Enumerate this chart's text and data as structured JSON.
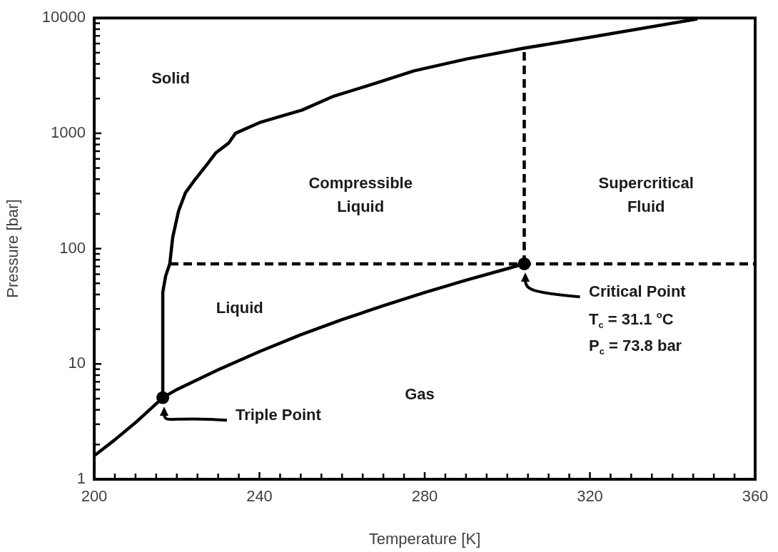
{
  "chart_data": {
    "type": "line",
    "xlabel": "Temperature [K]",
    "ylabel": "Pressure [bar]",
    "log": "y",
    "grid": false,
    "legend": false,
    "xlim": [
      200,
      360
    ],
    "xticks": [
      200,
      {
        "value": 205,
        "label": null
      },
      {
        "value": 210,
        "label": null
      },
      {
        "value": 215,
        "label": null
      },
      {
        "value": 220,
        "label": null
      },
      {
        "value": 225,
        "label": null
      },
      {
        "value": 230,
        "label": null
      },
      {
        "value": 235,
        "label": null
      },
      240,
      {
        "value": 245,
        "label": null
      },
      {
        "value": 250,
        "label": null
      },
      {
        "value": 255,
        "label": null
      },
      {
        "value": 260,
        "label": null
      },
      {
        "value": 265,
        "label": null
      },
      {
        "value": 270,
        "label": null
      },
      {
        "value": 275,
        "label": null
      },
      280,
      {
        "value": 285,
        "label": null
      },
      {
        "value": 290,
        "label": null
      },
      {
        "value": 295,
        "label": null
      },
      {
        "value": 300,
        "label": null
      },
      {
        "value": 305,
        "label": null
      },
      {
        "value": 310,
        "label": null
      },
      {
        "value": 315,
        "label": null
      },
      320,
      {
        "value": 325,
        "label": null
      },
      {
        "value": 330,
        "label": null
      },
      {
        "value": 335,
        "label": null
      },
      {
        "value": 340,
        "label": null
      },
      {
        "value": 345,
        "label": null
      },
      {
        "value": 350,
        "label": null
      },
      {
        "value": 355,
        "label": null
      },
      360
    ],
    "ylim": [
      1,
      10000
    ],
    "yticks": [
      1,
      {
        "value": 2,
        "label": null
      },
      {
        "value": 3,
        "label": null
      },
      {
        "value": 4,
        "label": null
      },
      {
        "value": 5,
        "label": null
      },
      {
        "value": 6,
        "label": null
      },
      {
        "value": 7,
        "label": null
      },
      {
        "value": 8,
        "label": null
      },
      {
        "value": 9,
        "label": null
      },
      10,
      {
        "value": 20,
        "label": null
      },
      {
        "value": 30,
        "label": null
      },
      {
        "value": 40,
        "label": null
      },
      {
        "value": 50,
        "label": null
      },
      {
        "value": 60,
        "label": null
      },
      {
        "value": 70,
        "label": null
      },
      {
        "value": 80,
        "label": null
      },
      {
        "value": 90,
        "label": null
      },
      100,
      {
        "value": 200,
        "label": null
      },
      {
        "value": 300,
        "label": null
      },
      {
        "value": 400,
        "label": null
      },
      {
        "value": 500,
        "label": null
      },
      {
        "value": 600,
        "label": null
      },
      {
        "value": 700,
        "label": null
      },
      {
        "value": 800,
        "label": null
      },
      {
        "value": 900,
        "label": null
      },
      1000,
      {
        "value": 2000,
        "label": null
      },
      {
        "value": 3000,
        "label": null
      },
      {
        "value": 4000,
        "label": null
      },
      {
        "value": 5000,
        "label": null
      },
      {
        "value": 6000,
        "label": null
      },
      {
        "value": 7000,
        "label": null
      },
      {
        "value": 8000,
        "label": null
      },
      {
        "value": 9000,
        "label": null
      },
      10000
    ],
    "series": [
      {
        "type": "line",
        "color": "#000000",
        "marker": "none",
        "line_style": "solid",
        "x": [
          200,
          205,
          210,
          216.6
        ],
        "values": [
          1.6,
          2.2,
          3.1,
          5.1
        ]
      },
      {
        "type": "line",
        "color": "#000000",
        "marker": "none",
        "line_style": "solid",
        "x": [
          216.6,
          220,
          230,
          240,
          250,
          260,
          270,
          280,
          290,
          300,
          304.1
        ],
        "values": [
          5.1,
          6,
          8.9,
          12.8,
          17.9,
          24.2,
          32,
          41.6,
          53.2,
          67,
          73.8
        ]
      },
      {
        "type": "line",
        "color": "#000000",
        "marker": "none",
        "line_style": "solid",
        "x": [
          216.6,
          216.6,
          217.3,
          218.3,
          219,
          220.4,
          222.1,
          224.2,
          227.3,
          229.5,
          232.5,
          234.2,
          240,
          246.3,
          250.3,
          258,
          267.6,
          277.4,
          290,
          303.8,
          320,
          346
        ],
        "values": [
          5.1,
          42,
          58,
          74,
          125,
          211,
          306,
          388,
          537,
          680,
          819,
          1000,
          1237,
          1445,
          1589,
          2100,
          2680,
          3480,
          4400,
          5450,
          6800,
          9800
        ]
      },
      {
        "type": "line",
        "color": "#000000",
        "marker": "none",
        "line_style": "dashed",
        "x": [
          218.3,
          360
        ],
        "values": [
          73.8,
          73.8
        ]
      },
      {
        "type": "line",
        "color": "#000000",
        "marker": "none",
        "line_style": "dashed",
        "x": [
          304.1,
          304.1
        ],
        "values": [
          73.8,
          5450
        ]
      },
      {
        "type": "scatter",
        "color": "#000000",
        "marker": "circle",
        "x": [
          216.6,
          304.1
        ],
        "values": [
          5.1,
          73.8
        ]
      }
    ],
    "annotations": [
      "Solid",
      "Compressible\nLiquid",
      "Supercritical\nFluid",
      "Liquid",
      "Gas",
      "Triple Point",
      "Critical Point",
      "T$_{c}$ = 31.1 $^{o}$C",
      "P$_{c}$ = 73.8 bar"
    ]
  }
}
